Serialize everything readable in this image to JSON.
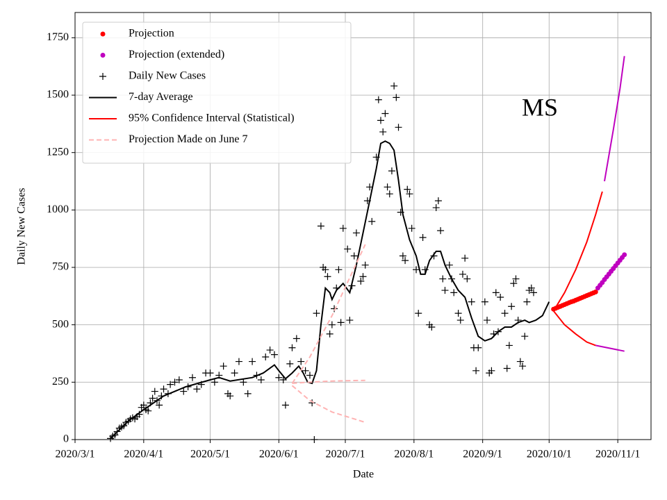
{
  "chart_data": {
    "type": "line",
    "annotation": "MS",
    "x_label": "Date",
    "y_label": "Daily New Cases",
    "xlim": [
      "2020-03-01",
      "2020-11-16"
    ],
    "xticks": [
      {
        "value": "2020-03-01",
        "label": "2020/3/1"
      },
      {
        "value": "2020-04-01",
        "label": "2020/4/1"
      },
      {
        "value": "2020-05-01",
        "label": "2020/5/1"
      },
      {
        "value": "2020-06-01",
        "label": "2020/6/1"
      },
      {
        "value": "2020-07-01",
        "label": "2020/7/1"
      },
      {
        "value": "2020-08-01",
        "label": "2020/8/1"
      },
      {
        "value": "2020-09-01",
        "label": "2020/9/1"
      },
      {
        "value": "2020-10-01",
        "label": "2020/10/1"
      },
      {
        "value": "2020-11-01",
        "label": "2020/11/1"
      }
    ],
    "ylim": [
      0,
      1860
    ],
    "yticks": [
      0,
      250,
      500,
      750,
      1000,
      1250,
      1500,
      1750
    ],
    "grid": true,
    "legend": "upper left",
    "series": [
      {
        "name": "Projection",
        "color": "#ff0000",
        "style": "dots",
        "x": [
          "2020-10-03",
          "2020-10-04",
          "2020-10-05",
          "2020-10-06",
          "2020-10-07",
          "2020-10-08",
          "2020-10-09",
          "2020-10-10",
          "2020-10-11",
          "2020-10-12",
          "2020-10-13",
          "2020-10-14",
          "2020-10-15",
          "2020-10-16",
          "2020-10-17",
          "2020-10-18",
          "2020-10-19",
          "2020-10-20",
          "2020-10-21",
          "2020-10-22"
        ],
        "values": [
          568,
          572,
          576,
          580,
          584,
          588,
          592,
          596,
          600,
          603,
          607,
          611,
          615,
          619,
          623,
          627,
          631,
          635,
          639,
          643
        ]
      },
      {
        "name": "Projection (extended)",
        "color": "#bf00bf",
        "style": "dots",
        "x": [
          "2020-10-23",
          "2020-10-24",
          "2020-10-25",
          "2020-10-26",
          "2020-10-27",
          "2020-10-28",
          "2020-10-29",
          "2020-10-30",
          "2020-10-31",
          "2020-11-01",
          "2020-11-02",
          "2020-11-03",
          "2020-11-04"
        ],
        "values": [
          660,
          672,
          684,
          697,
          709,
          721,
          733,
          745,
          757,
          769,
          781,
          793,
          805
        ]
      },
      {
        "name": "Daily New Cases",
        "color": "#000000",
        "style": "plus",
        "x": [
          "2020-03-17",
          "2020-03-18",
          "2020-03-19",
          "2020-03-20",
          "2020-03-21",
          "2020-03-22",
          "2020-03-23",
          "2020-03-24",
          "2020-03-25",
          "2020-03-26",
          "2020-03-27",
          "2020-03-28",
          "2020-03-29",
          "2020-03-30",
          "2020-03-31",
          "2020-04-01",
          "2020-04-02",
          "2020-04-03",
          "2020-04-04",
          "2020-04-05",
          "2020-04-06",
          "2020-04-07",
          "2020-04-08",
          "2020-04-09",
          "2020-04-10",
          "2020-04-12",
          "2020-04-13",
          "2020-04-15",
          "2020-04-17",
          "2020-04-19",
          "2020-04-21",
          "2020-04-23",
          "2020-04-25",
          "2020-04-27",
          "2020-04-29",
          "2020-05-01",
          "2020-05-03",
          "2020-05-05",
          "2020-05-07",
          "2020-05-09",
          "2020-05-10",
          "2020-05-12",
          "2020-05-14",
          "2020-05-16",
          "2020-05-18",
          "2020-05-20",
          "2020-05-22",
          "2020-05-24",
          "2020-05-26",
          "2020-05-28",
          "2020-05-30",
          "2020-06-01",
          "2020-06-03",
          "2020-06-04",
          "2020-06-06",
          "2020-06-07",
          "2020-06-09",
          "2020-06-11",
          "2020-06-13",
          "2020-06-15",
          "2020-06-16",
          "2020-06-17",
          "2020-06-18",
          "2020-06-20",
          "2020-06-21",
          "2020-06-22",
          "2020-06-23",
          "2020-06-24",
          "2020-06-25",
          "2020-06-26",
          "2020-06-27",
          "2020-06-28",
          "2020-06-29",
          "2020-06-30",
          "2020-07-02",
          "2020-07-03",
          "2020-07-04",
          "2020-07-05",
          "2020-07-06",
          "2020-07-08",
          "2020-07-09",
          "2020-07-10",
          "2020-07-11",
          "2020-07-12",
          "2020-07-13",
          "2020-07-15",
          "2020-07-16",
          "2020-07-17",
          "2020-07-18",
          "2020-07-19",
          "2020-07-20",
          "2020-07-21",
          "2020-07-22",
          "2020-07-23",
          "2020-07-24",
          "2020-07-25",
          "2020-07-26",
          "2020-07-27",
          "2020-07-28",
          "2020-07-29",
          "2020-07-30",
          "2020-07-31",
          "2020-08-02",
          "2020-08-03",
          "2020-08-05",
          "2020-08-06",
          "2020-08-08",
          "2020-08-09",
          "2020-08-10",
          "2020-08-11",
          "2020-08-12",
          "2020-08-13",
          "2020-08-14",
          "2020-08-15",
          "2020-08-17",
          "2020-08-18",
          "2020-08-19",
          "2020-08-21",
          "2020-08-22",
          "2020-08-23",
          "2020-08-24",
          "2020-08-25",
          "2020-08-27",
          "2020-08-28",
          "2020-08-29",
          "2020-08-30",
          "2020-09-02",
          "2020-09-03",
          "2020-09-04",
          "2020-09-05",
          "2020-09-06",
          "2020-09-07",
          "2020-09-08",
          "2020-09-09",
          "2020-09-11",
          "2020-09-12",
          "2020-09-13",
          "2020-09-14",
          "2020-09-15",
          "2020-09-16",
          "2020-09-17",
          "2020-09-18",
          "2020-09-19",
          "2020-09-20",
          "2020-09-21",
          "2020-09-22",
          "2020-09-23",
          "2020-09-24"
        ],
        "values": [
          5,
          15,
          20,
          35,
          50,
          55,
          60,
          75,
          80,
          90,
          95,
          90,
          100,
          110,
          140,
          150,
          130,
          125,
          160,
          180,
          210,
          170,
          150,
          190,
          220,
          200,
          240,
          250,
          260,
          210,
          230,
          270,
          220,
          240,
          290,
          290,
          250,
          280,
          320,
          200,
          190,
          290,
          340,
          250,
          200,
          340,
          280,
          260,
          360,
          390,
          370,
          270,
          260,
          150,
          330,
          400,
          440,
          340,
          300,
          280,
          160,
          0,
          550,
          930,
          750,
          740,
          710,
          460,
          500,
          570,
          660,
          740,
          510,
          920,
          830,
          520,
          670,
          800,
          900,
          690,
          710,
          760,
          1040,
          1100,
          950,
          1230,
          1480,
          1390,
          1340,
          1420,
          1100,
          1070,
          1170,
          1540,
          1490,
          1360,
          990,
          800,
          780,
          1090,
          1070,
          920,
          740,
          550,
          880,
          740,
          500,
          490,
          800,
          1010,
          1040,
          910,
          700,
          650,
          760,
          700,
          640,
          550,
          520,
          720,
          790,
          700,
          600,
          400,
          300,
          400,
          600,
          520,
          290,
          300,
          460,
          640,
          470,
          620,
          550,
          310,
          410,
          580,
          680,
          700,
          520,
          340,
          320,
          450,
          600,
          650,
          660,
          640
        ]
      },
      {
        "name": "7-day Average",
        "color": "#000000",
        "style": "line",
        "x": [
          "2020-03-17",
          "2020-03-25",
          "2020-04-01",
          "2020-04-10",
          "2020-04-20",
          "2020-05-01",
          "2020-05-05",
          "2020-05-10",
          "2020-05-20",
          "2020-05-25",
          "2020-05-30",
          "2020-06-01",
          "2020-06-04",
          "2020-06-07",
          "2020-06-10",
          "2020-06-12",
          "2020-06-14",
          "2020-06-16",
          "2020-06-18",
          "2020-06-20",
          "2020-06-22",
          "2020-06-24",
          "2020-06-25",
          "2020-06-27",
          "2020-06-30",
          "2020-07-03",
          "2020-07-06",
          "2020-07-09",
          "2020-07-12",
          "2020-07-15",
          "2020-07-17",
          "2020-07-19",
          "2020-07-21",
          "2020-07-23",
          "2020-07-25",
          "2020-07-27",
          "2020-07-30",
          "2020-08-02",
          "2020-08-04",
          "2020-08-06",
          "2020-08-08",
          "2020-08-11",
          "2020-08-13",
          "2020-08-15",
          "2020-08-18",
          "2020-08-21",
          "2020-08-24",
          "2020-08-27",
          "2020-08-30",
          "2020-09-02",
          "2020-09-05",
          "2020-09-08",
          "2020-09-11",
          "2020-09-14",
          "2020-09-17",
          "2020-09-20",
          "2020-09-22",
          "2020-09-25",
          "2020-09-28",
          "2020-10-01"
        ],
        "values": [
          5,
          80,
          130,
          190,
          230,
          260,
          270,
          255,
          270,
          290,
          325,
          300,
          265,
          290,
          320,
          290,
          250,
          245,
          300,
          500,
          660,
          640,
          610,
          650,
          680,
          640,
          760,
          900,
          1040,
          1180,
          1290,
          1300,
          1290,
          1260,
          1130,
          980,
          870,
          800,
          720,
          720,
          780,
          820,
          820,
          760,
          700,
          650,
          620,
          530,
          450,
          430,
          440,
          470,
          490,
          490,
          510,
          520,
          510,
          520,
          540,
          600
        ]
      },
      {
        "name": "95% Confidence Interval (Statistical)",
        "color": "#ff0000",
        "style": "line",
        "lines": [
          {
            "x": [
              "2020-10-03",
              "2020-10-08",
              "2020-10-13",
              "2020-10-18",
              "2020-10-22",
              "2020-10-25"
            ],
            "values": [
              560,
              640,
              740,
              860,
              980,
              1080
            ]
          },
          {
            "x": [
              "2020-10-03",
              "2020-10-08",
              "2020-10-13",
              "2020-10-18",
              "2020-10-22"
            ],
            "values": [
              560,
              500,
              460,
              425,
              410
            ]
          }
        ]
      },
      {
        "name": "Projection Made on June 7",
        "color": "#ffb3b3",
        "style": "line",
        "dashed": true,
        "lines": [
          {
            "x": [
              "2020-06-07",
              "2020-06-15",
              "2020-06-25",
              "2020-07-10"
            ],
            "values": [
              245,
              250,
              255,
              258
            ]
          },
          {
            "x": [
              "2020-06-07",
              "2020-06-15",
              "2020-06-25",
              "2020-07-10"
            ],
            "values": [
              245,
              360,
              540,
              850
            ]
          },
          {
            "x": [
              "2020-06-07",
              "2020-06-15",
              "2020-06-25",
              "2020-07-10"
            ],
            "values": [
              235,
              170,
              120,
              75
            ]
          }
        ]
      },
      {
        "color": "#bf00bf",
        "style": "line",
        "lines": [
          {
            "x": [
              "2020-10-26",
              "2020-10-30",
              "2020-11-02",
              "2020-11-04"
            ],
            "values": [
              1125,
              1350,
              1530,
              1670
            ]
          },
          {
            "x": [
              "2020-10-22",
              "2020-11-04"
            ],
            "values": [
              410,
              385
            ]
          }
        ]
      }
    ]
  }
}
